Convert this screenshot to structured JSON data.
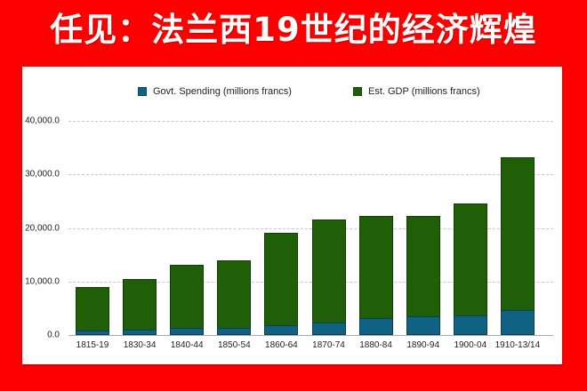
{
  "page": {
    "title": "任见：法兰西19世纪的经济辉煌",
    "background_color": "#fe0000"
  },
  "chart_data": {
    "type": "bar",
    "stacked": true,
    "title": "",
    "xlabel": "",
    "ylabel": "",
    "categories": [
      "1815-19",
      "1830-34",
      "1840-44",
      "1850-54",
      "1860-64",
      "1870-74",
      "1880-84",
      "1890-94",
      "1900-04",
      "1910-13/14"
    ],
    "series": [
      {
        "name": "Govt. Spending (millions francs)",
        "color": "#0f6284",
        "values": [
          900,
          1000,
          1250,
          1400,
          1800,
          2300,
          3200,
          3500,
          3700,
          4600
        ]
      },
      {
        "name": "Est. GDP (millions francs)",
        "color": "#1f5f08",
        "values": [
          8900,
          10500,
          13200,
          14000,
          19100,
          21600,
          22300,
          22200,
          24600,
          33300
        ]
      }
    ],
    "ylim": [
      0,
      40000
    ],
    "yticks": [
      0,
      10000,
      20000,
      30000,
      40000
    ],
    "ytick_labels": [
      "0.0",
      "10,000.0",
      "20,000.0",
      "30,000.0",
      "40,000.0"
    ],
    "grid": true,
    "legend_position": "top",
    "note": "Spending segment drawn at bottom overlapping the GDP bar; GDP bar height equals total GDP value"
  },
  "legend": {
    "items": [
      {
        "label": "Govt. Spending (millions francs)",
        "color": "#0f6284"
      },
      {
        "label": "Est. GDP (millions francs)",
        "color": "#1f5f08"
      }
    ]
  }
}
